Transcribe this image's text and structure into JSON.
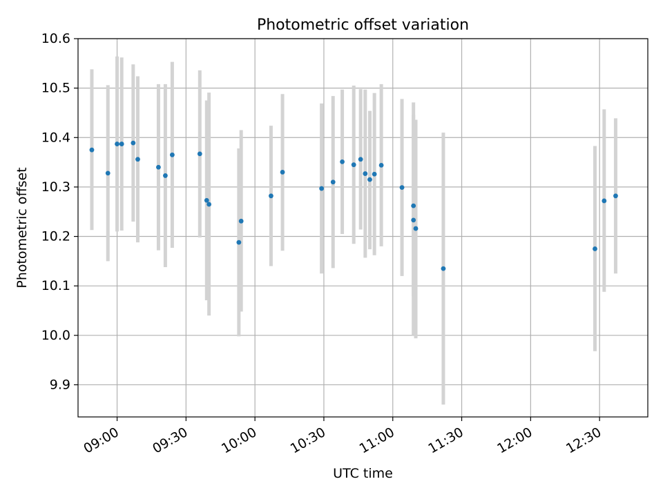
{
  "chart_data": {
    "type": "scatter",
    "title": "Photometric offset variation",
    "xlabel": "UTC time",
    "ylabel": "Photometric offset",
    "xlim": [
      "08:43",
      "12:51"
    ],
    "ylim": [
      9.835,
      10.6
    ],
    "x_ticks": [
      "09:00",
      "09:30",
      "10:00",
      "10:30",
      "11:00",
      "11:30",
      "12:00",
      "12:30"
    ],
    "y_ticks": [
      "9.9",
      "10.0",
      "10.1",
      "10.2",
      "10.3",
      "10.4",
      "10.5",
      "10.6"
    ],
    "grid": true,
    "colors": {
      "point": "#1f77b4",
      "errorbar": "#d3d3d3",
      "grid": "#b0b0b0",
      "axis": "#000000"
    },
    "points": [
      {
        "x": "08:49",
        "y": 10.375,
        "ylow": 10.213,
        "yhigh": 10.538
      },
      {
        "x": "08:56",
        "y": 10.328,
        "ylow": 10.15,
        "yhigh": 10.506
      },
      {
        "x": "09:00",
        "y": 10.387,
        "ylow": 10.21,
        "yhigh": 10.564
      },
      {
        "x": "09:02",
        "y": 10.387,
        "ylow": 10.212,
        "yhigh": 10.562
      },
      {
        "x": "09:07",
        "y": 10.389,
        "ylow": 10.23,
        "yhigh": 10.548
      },
      {
        "x": "09:09",
        "y": 10.356,
        "ylow": 10.188,
        "yhigh": 10.524
      },
      {
        "x": "09:18",
        "y": 10.34,
        "ylow": 10.172,
        "yhigh": 10.508
      },
      {
        "x": "09:21",
        "y": 10.323,
        "ylow": 10.138,
        "yhigh": 10.508
      },
      {
        "x": "09:24",
        "y": 10.365,
        "ylow": 10.177,
        "yhigh": 10.553
      },
      {
        "x": "09:36",
        "y": 10.367,
        "ylow": 10.198,
        "yhigh": 10.536
      },
      {
        "x": "09:39",
        "y": 10.273,
        "ylow": 10.071,
        "yhigh": 10.475
      },
      {
        "x": "09:40",
        "y": 10.265,
        "ylow": 10.04,
        "yhigh": 10.491
      },
      {
        "x": "09:53",
        "y": 10.188,
        "ylow": 9.998,
        "yhigh": 10.378
      },
      {
        "x": "09:54",
        "y": 10.231,
        "ylow": 10.048,
        "yhigh": 10.415
      },
      {
        "x": "10:07",
        "y": 10.282,
        "ylow": 10.14,
        "yhigh": 10.424
      },
      {
        "x": "10:12",
        "y": 10.33,
        "ylow": 10.171,
        "yhigh": 10.488
      },
      {
        "x": "10:29",
        "y": 10.297,
        "ylow": 10.125,
        "yhigh": 10.469
      },
      {
        "x": "10:34",
        "y": 10.31,
        "ylow": 10.136,
        "yhigh": 10.484
      },
      {
        "x": "10:38",
        "y": 10.351,
        "ylow": 10.205,
        "yhigh": 10.497
      },
      {
        "x": "10:43",
        "y": 10.345,
        "ylow": 10.185,
        "yhigh": 10.505
      },
      {
        "x": "10:46",
        "y": 10.356,
        "ylow": 10.214,
        "yhigh": 10.498
      },
      {
        "x": "10:48",
        "y": 10.327,
        "ylow": 10.157,
        "yhigh": 10.497
      },
      {
        "x": "10:50",
        "y": 10.315,
        "ylow": 10.174,
        "yhigh": 10.454
      },
      {
        "x": "10:52",
        "y": 10.326,
        "ylow": 10.162,
        "yhigh": 10.49
      },
      {
        "x": "10:55",
        "y": 10.344,
        "ylow": 10.18,
        "yhigh": 10.508
      },
      {
        "x": "11:04",
        "y": 10.299,
        "ylow": 10.12,
        "yhigh": 10.478
      },
      {
        "x": "11:09",
        "y": 10.262,
        "ylow": 10.079,
        "yhigh": 10.446
      },
      {
        "x": "11:09",
        "y": 10.233,
        "ylow": 10.0,
        "yhigh": 10.471
      },
      {
        "x": "11:10",
        "y": 10.216,
        "ylow": 9.994,
        "yhigh": 10.436
      },
      {
        "x": "11:22",
        "y": 10.135,
        "ylow": 9.86,
        "yhigh": 10.41
      },
      {
        "x": "12:28",
        "y": 10.175,
        "ylow": 9.968,
        "yhigh": 10.383
      },
      {
        "x": "12:32",
        "y": 10.272,
        "ylow": 10.088,
        "yhigh": 10.457
      },
      {
        "x": "12:37",
        "y": 10.282,
        "ylow": 10.125,
        "yhigh": 10.439
      }
    ]
  }
}
